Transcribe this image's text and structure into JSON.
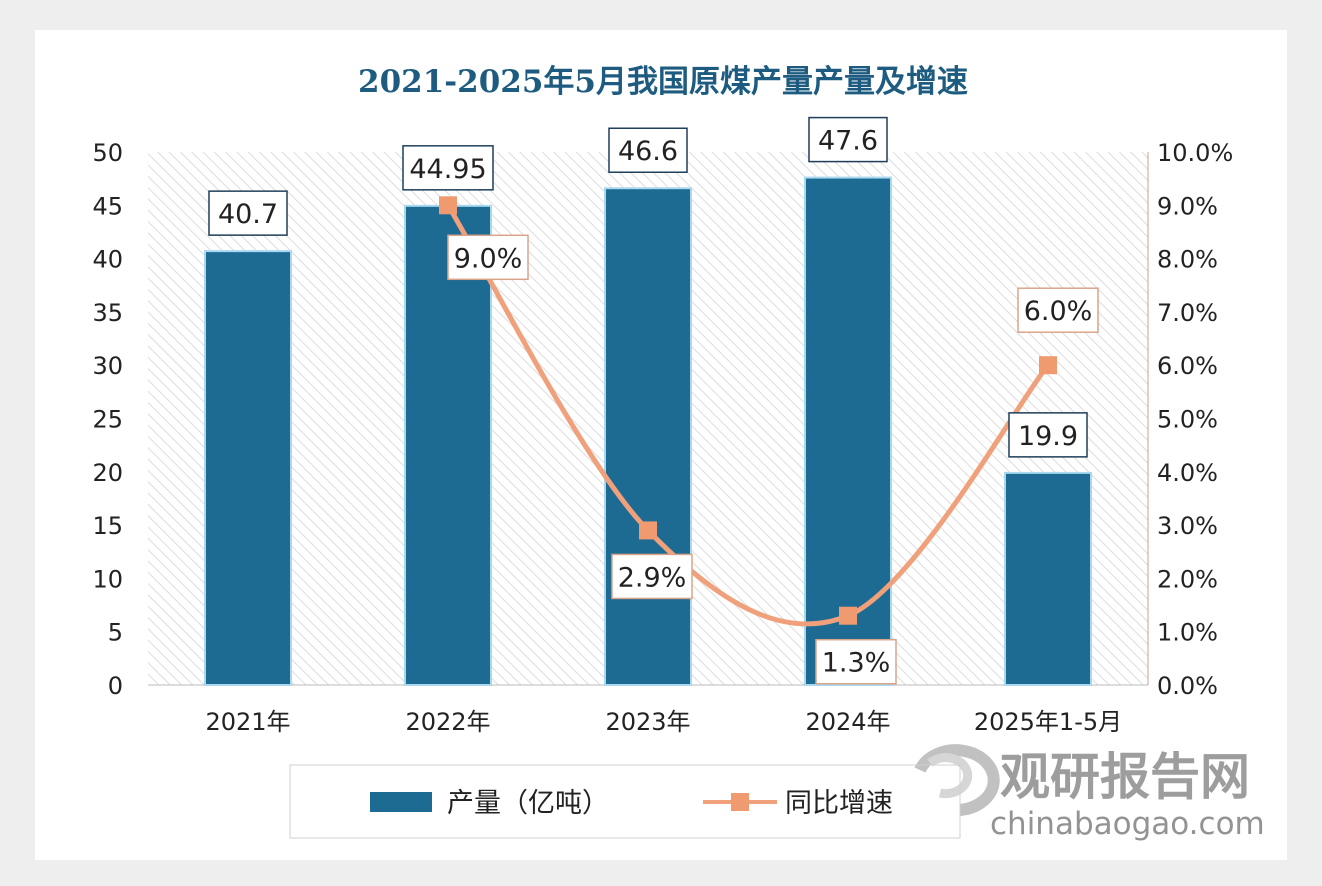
{
  "chart_data": {
    "type": "bar+line",
    "title": "2021-2025年5月我国原煤产量产量及增速",
    "categories": [
      "2021年",
      "2022年",
      "2023年",
      "2024年",
      "2025年1-5月"
    ],
    "series": [
      {
        "name": "产量（亿吨）",
        "type": "bar",
        "axis": "left",
        "values": [
          40.7,
          44.95,
          46.6,
          47.6,
          19.9
        ],
        "labels": [
          "40.7",
          "44.95",
          "46.6",
          "47.6",
          "19.9"
        ],
        "color": "#1d6a93"
      },
      {
        "name": "同比增速",
        "type": "line",
        "axis": "right",
        "values": [
          null,
          9.0,
          2.9,
          1.3,
          6.0
        ],
        "labels": [
          "",
          "9.0%",
          "2.9%",
          "1.3%",
          "6.0%"
        ],
        "color": "#f0a07a"
      }
    ],
    "left_axis": {
      "ylim": [
        0,
        50
      ],
      "ticks": [
        "0",
        "5",
        "10",
        "15",
        "20",
        "25",
        "30",
        "35",
        "40",
        "45",
        "50"
      ]
    },
    "right_axis": {
      "ylim": [
        0,
        10
      ],
      "ticks": [
        "0.0%",
        "1.0%",
        "2.0%",
        "3.0%",
        "4.0%",
        "5.0%",
        "6.0%",
        "7.0%",
        "8.0%",
        "9.0%",
        "10.0%"
      ]
    },
    "legend": "bottom"
  },
  "watermark": {
    "name": "观研报告网",
    "url": "chinabaogao.com"
  }
}
